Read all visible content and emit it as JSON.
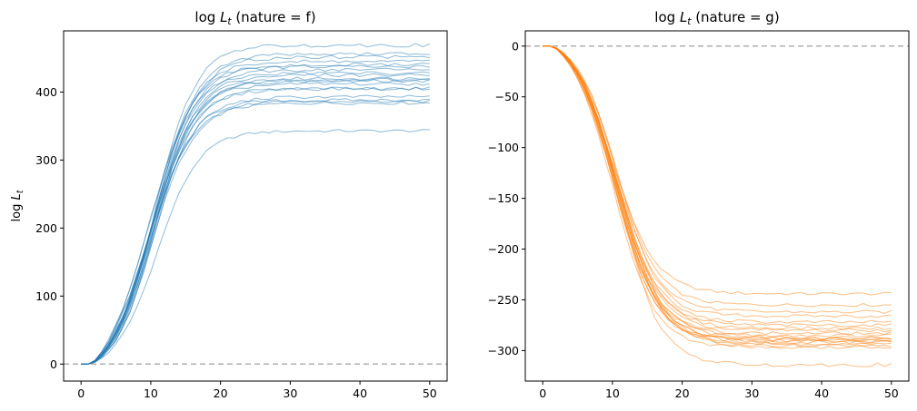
{
  "chart_data": [
    {
      "type": "line",
      "title": "log L_t (nature = f)",
      "title_main": "log ",
      "title_var": "L",
      "title_sub": "t",
      "title_rest": " (nature = f)",
      "ylabel_main": "log ",
      "ylabel_var": "L",
      "ylabel_sub": "t",
      "xlim": [
        -2.5,
        52.5
      ],
      "ylim": [
        -25,
        490
      ],
      "xticks": [
        "0",
        "10",
        "20",
        "30",
        "40",
        "50"
      ],
      "yticks": [
        "0",
        "100",
        "200",
        "300",
        "400"
      ],
      "reference_line_y": 0,
      "color": "#1f77b4",
      "line_opacity": 0.5,
      "x_range": [
        0,
        50
      ],
      "n_points": 51,
      "t_onset": 1.5,
      "n_series": 20,
      "finals": [
        343,
        384,
        386,
        388,
        393,
        405,
        405,
        412,
        416,
        418,
        420,
        425,
        428,
        433,
        437,
        440,
        445,
        452,
        456,
        469
      ],
      "midpoints": [
        10.9,
        9.4,
        10.2,
        10.0,
        9.9,
        10.6,
        9.6,
        9.9,
        10.4,
        10.1,
        10.0,
        10.7,
        10.2,
        9.5,
        10.8,
        9.7,
        10.3,
        10.4,
        10.5,
        10.6
      ],
      "rates": [
        3.0,
        3.3,
        3.1,
        3.0,
        3.2,
        2.9,
        3.3,
        3.1,
        3.0,
        3.2,
        3.1,
        2.9,
        3.0,
        3.3,
        2.8,
        3.2,
        3.0,
        3.1,
        3.0,
        2.9
      ]
    },
    {
      "type": "line",
      "title": "log L_t (nature = g)",
      "title_main": "log ",
      "title_var": "L",
      "title_sub": "t",
      "title_rest": " (nature = g)",
      "xlim": [
        -2.5,
        52.5
      ],
      "ylim": [
        -330,
        15
      ],
      "xticks": [
        "0",
        "10",
        "20",
        "30",
        "40",
        "50"
      ],
      "yticks": [
        "0",
        "−50",
        "−100",
        "−150",
        "−200",
        "−250",
        "−300"
      ],
      "reference_line_y": 0,
      "color": "#ff7f0e",
      "line_opacity": 0.5,
      "x_range": [
        0,
        50
      ],
      "n_points": 51,
      "t_onset": 1.5,
      "n_series": 20,
      "finals": [
        -244,
        -255,
        -262,
        -266,
        -272,
        -275,
        -278,
        -280,
        -283,
        -285,
        -287,
        -288,
        -289,
        -290,
        -291,
        -292,
        -294,
        -295,
        -297,
        -314
      ],
      "midpoints": [
        10.0,
        10.5,
        10.2,
        10.8,
        10.4,
        10.6,
        10.3,
        10.9,
        10.1,
        10.7,
        10.5,
        10.2,
        10.6,
        10.4,
        10.8,
        10.3,
        10.5,
        10.7,
        10.1,
        11.0
      ],
      "rates": [
        3.1,
        3.0,
        3.2,
        2.9,
        3.1,
        3.0,
        3.2,
        2.9,
        3.1,
        3.0,
        3.2,
        3.1,
        3.0,
        2.9,
        3.1,
        3.0,
        3.2,
        3.1,
        3.0,
        2.9
      ]
    }
  ]
}
